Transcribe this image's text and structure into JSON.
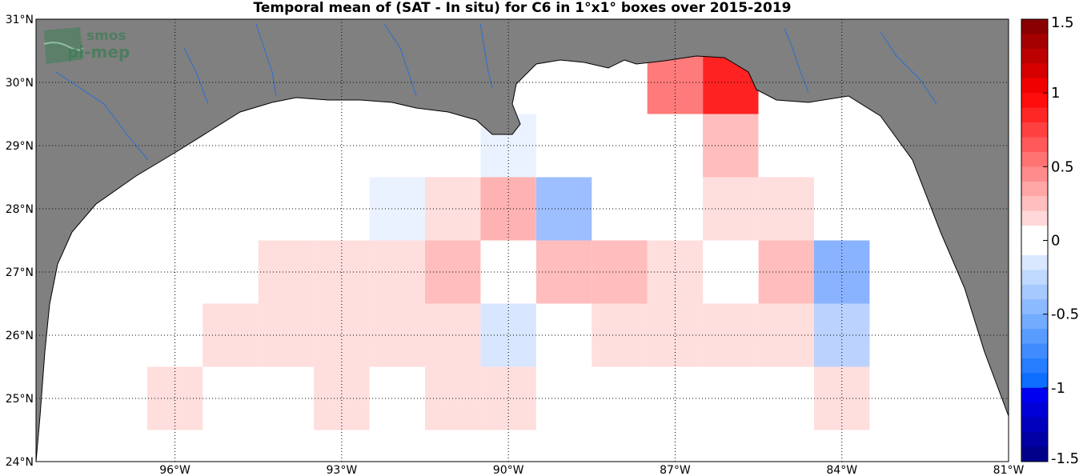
{
  "title": "Temporal mean of (SAT - In situ) for C6 in 1°x1° boxes over 2015-2019",
  "logo": {
    "line1": "smos",
    "line2": "pi-mep"
  },
  "map": {
    "lon_range": [
      -98.5,
      -81
    ],
    "lat_range": [
      24,
      31
    ],
    "lon_ticks": [
      {
        "value": -96,
        "label": "96°W"
      },
      {
        "value": -93,
        "label": "93°W"
      },
      {
        "value": -90,
        "label": "90°W"
      },
      {
        "value": -87,
        "label": "87°W"
      },
      {
        "value": -84,
        "label": "84°W"
      },
      {
        "value": -81,
        "label": "81°W"
      }
    ],
    "lat_ticks": [
      {
        "value": 24,
        "label": "24°N"
      },
      {
        "value": 25,
        "label": "25°N"
      },
      {
        "value": 26,
        "label": "26°N"
      },
      {
        "value": 27,
        "label": "27°N"
      },
      {
        "value": 28,
        "label": "28°N"
      },
      {
        "value": 29,
        "label": "29°N"
      },
      {
        "value": 30,
        "label": "30°N"
      },
      {
        "value": 31,
        "label": "31°N"
      }
    ],
    "land_color": "#808080",
    "river_color": "#2a6fd1",
    "grid": "dotted",
    "cells": [
      {
        "lon": -86,
        "lat": 30,
        "value": 1.0
      },
      {
        "lon": -87,
        "lat": 30,
        "value": 0.6
      },
      {
        "lon": -86,
        "lat": 29,
        "value": 0.3
      },
      {
        "lon": -90,
        "lat": 29,
        "value": -0.1
      },
      {
        "lon": -92,
        "lat": 28,
        "value": -0.1
      },
      {
        "lon": -91,
        "lat": 28,
        "value": 0.15
      },
      {
        "lon": -90,
        "lat": 28,
        "value": 0.35
      },
      {
        "lon": -89,
        "lat": 28,
        "value": -0.5
      },
      {
        "lon": -86,
        "lat": 28,
        "value": 0.15
      },
      {
        "lon": -85,
        "lat": 28,
        "value": 0.15
      },
      {
        "lon": -94,
        "lat": 27,
        "value": 0.15
      },
      {
        "lon": -93,
        "lat": 27,
        "value": 0.15
      },
      {
        "lon": -92,
        "lat": 27,
        "value": 0.15
      },
      {
        "lon": -91,
        "lat": 27,
        "value": 0.3
      },
      {
        "lon": -89,
        "lat": 27,
        "value": 0.3
      },
      {
        "lon": -88,
        "lat": 27,
        "value": 0.3
      },
      {
        "lon": -87,
        "lat": 27,
        "value": 0.15
      },
      {
        "lon": -85,
        "lat": 27,
        "value": 0.3
      },
      {
        "lon": -84,
        "lat": 27,
        "value": -0.6
      },
      {
        "lon": -95,
        "lat": 26,
        "value": 0.15
      },
      {
        "lon": -94,
        "lat": 26,
        "value": 0.15
      },
      {
        "lon": -93,
        "lat": 26,
        "value": 0.15
      },
      {
        "lon": -92,
        "lat": 26,
        "value": 0.15
      },
      {
        "lon": -91,
        "lat": 26,
        "value": 0.15
      },
      {
        "lon": -90,
        "lat": 26,
        "value": -0.2
      },
      {
        "lon": -88,
        "lat": 26,
        "value": 0.15
      },
      {
        "lon": -87,
        "lat": 26,
        "value": 0.15
      },
      {
        "lon": -86,
        "lat": 26,
        "value": 0.15
      },
      {
        "lon": -85,
        "lat": 26,
        "value": 0.15
      },
      {
        "lon": -84,
        "lat": 26,
        "value": -0.35
      },
      {
        "lon": -96,
        "lat": 25,
        "value": 0.15
      },
      {
        "lon": -93,
        "lat": 25,
        "value": 0.15
      },
      {
        "lon": -91,
        "lat": 25,
        "value": 0.15
      },
      {
        "lon": -90,
        "lat": 25,
        "value": 0.15
      },
      {
        "lon": -84,
        "lat": 25,
        "value": 0.15
      }
    ]
  },
  "colorbar": {
    "min": -1.5,
    "max": 1.5,
    "ticks": [
      "1.5",
      "1",
      "0.5",
      "0",
      "-0.5",
      "-1",
      "-1.5"
    ],
    "tick_values": [
      1.5,
      1,
      0.5,
      0,
      -0.5,
      -1,
      -1.5
    ]
  }
}
